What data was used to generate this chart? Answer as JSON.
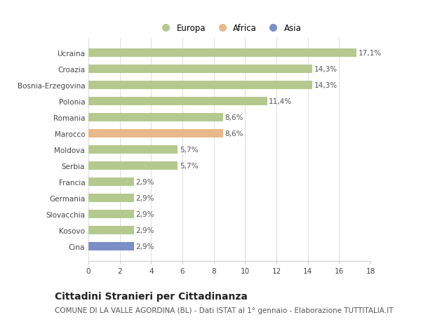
{
  "categories": [
    "Ucraina",
    "Croazia",
    "Bosnia-Erzegovina",
    "Polonia",
    "Romania",
    "Marocco",
    "Moldova",
    "Serbia",
    "Francia",
    "Germania",
    "Slovacchia",
    "Kosovo",
    "Cina"
  ],
  "values": [
    17.1,
    14.3,
    14.3,
    11.4,
    8.6,
    8.6,
    5.7,
    5.7,
    2.9,
    2.9,
    2.9,
    2.9,
    2.9
  ],
  "labels": [
    "17,1%",
    "14,3%",
    "14,3%",
    "11,4%",
    "8,6%",
    "8,6%",
    "5,7%",
    "5,7%",
    "2,9%",
    "2,9%",
    "2,9%",
    "2,9%",
    "2,9%"
  ],
  "colors": [
    "#b5c98e",
    "#b5c98e",
    "#b5c98e",
    "#b5c98e",
    "#b5c98e",
    "#e8b98a",
    "#b5c98e",
    "#b5c98e",
    "#b5c98e",
    "#b5c98e",
    "#b5c98e",
    "#b5c98e",
    "#7b8ec8"
  ],
  "legend": [
    {
      "label": "Europa",
      "color": "#b5c98e"
    },
    {
      "label": "Africa",
      "color": "#e8b98a"
    },
    {
      "label": "Asia",
      "color": "#7b8ec8"
    }
  ],
  "xlim": [
    0,
    18
  ],
  "xticks": [
    0,
    2,
    4,
    6,
    8,
    10,
    12,
    14,
    16,
    18
  ],
  "title": "Cittadini Stranieri per Cittadinanza",
  "subtitle": "COMUNE DI LA VALLE AGORDINA (BL) - Dati ISTAT al 1° gennaio - Elaborazione TUTTITALIA.IT",
  "bg_color": "#ffffff",
  "bar_height": 0.55,
  "title_fontsize": 10,
  "subtitle_fontsize": 7.5,
  "label_fontsize": 7.5,
  "tick_fontsize": 7.5,
  "legend_fontsize": 8.5
}
